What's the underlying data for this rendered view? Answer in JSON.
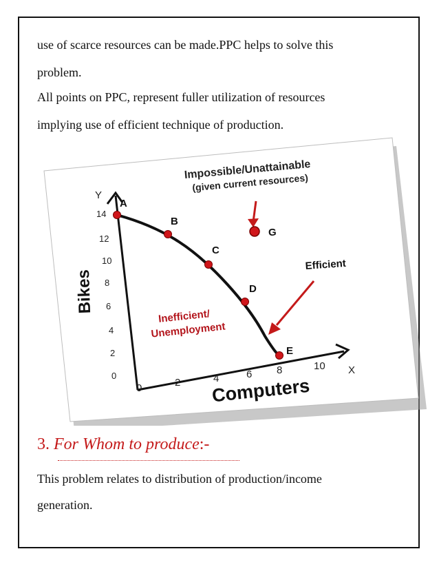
{
  "body_text": {
    "line1": "use of scarce resources can be made.PPC helps to solve this",
    "line2": "problem.",
    "line3": "All points on PPC, represent fuller utilization of resources",
    "line4": "implying use of efficient technique of production."
  },
  "figure": {
    "title_line1": "Impossible/Unattainable",
    "title_line2": "(given current resources)",
    "x_axis_title": "Computers",
    "y_axis_title": "Bikes",
    "x_axis_letter": "X",
    "y_axis_letter": "Y",
    "x_ticks": [
      "0",
      "2",
      "4",
      "6",
      "8",
      "10"
    ],
    "y_ticks": [
      "14",
      "12",
      "10",
      "8",
      "6",
      "4",
      "2",
      "0"
    ],
    "point_labels": [
      "A",
      "B",
      "C",
      "D",
      "E",
      "G"
    ],
    "efficient_label": "Efficient",
    "inefficient_line1": "Inefficient/",
    "inefficient_line2": "Unemployment",
    "colors": {
      "curve": "#111111",
      "point": "#d0161b",
      "annotation": "#b3141b"
    }
  },
  "section": {
    "number": "3.",
    "title": "For Whom to produce",
    "suffix": ":-"
  },
  "section_text": {
    "line1": "This problem relates to distribution of production/income",
    "line2": "generation."
  }
}
